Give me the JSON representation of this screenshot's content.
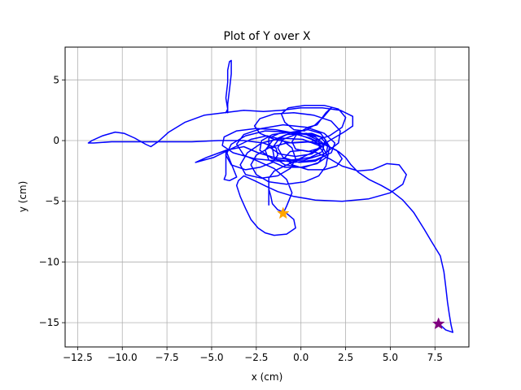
{
  "chart_data": {
    "type": "line",
    "title": "Plot of Y over X",
    "xlabel": "x (cm)",
    "ylabel": "y (cm)",
    "xlim": [
      -13.2,
      9.4
    ],
    "ylim": [
      -17.0,
      7.7
    ],
    "xticks": [
      -12.5,
      -10.0,
      -7.5,
      -5.0,
      -2.5,
      0.0,
      2.5,
      5.0,
      7.5
    ],
    "xtick_labels": [
      "−12.5",
      "−10.0",
      "−7.5",
      "−5.0",
      "−2.5",
      "0.0",
      "2.5",
      "5.0",
      "7.5"
    ],
    "yticks": [
      -15,
      -10,
      -5,
      0,
      5
    ],
    "ytick_labels": [
      "−15",
      "−10",
      "−5",
      "0",
      "5"
    ],
    "grid": true,
    "colors": {
      "line": "#0000ff",
      "start_marker": "#ffa500",
      "end_marker": "#800080",
      "grid": "#b0b0b0"
    },
    "series": [
      {
        "points": [
          [
            -1.0,
            -6.0
          ],
          [
            -0.8,
            -5.4
          ],
          [
            -0.5,
            -4.3
          ],
          [
            -0.8,
            -3.2
          ],
          [
            -1.5,
            -2.3
          ],
          [
            -2.4,
            -1.7
          ],
          [
            -3.2,
            -1.2
          ],
          [
            -3.6,
            -0.3
          ],
          [
            -3.2,
            0.5
          ],
          [
            -2.2,
            1.0
          ],
          [
            -1.0,
            1.3
          ],
          [
            0.3,
            1.1
          ],
          [
            1.3,
            0.6
          ],
          [
            1.9,
            -0.2
          ],
          [
            1.7,
            -1.0
          ],
          [
            0.8,
            -1.6
          ],
          [
            -0.4,
            -1.8
          ],
          [
            -1.6,
            -1.5
          ],
          [
            -2.3,
            -0.8
          ],
          [
            -2.2,
            0.0
          ],
          [
            -1.6,
            0.5
          ],
          [
            -0.7,
            0.7
          ],
          [
            0.3,
            0.5
          ],
          [
            1.0,
            0.0
          ],
          [
            1.1,
            -0.6
          ],
          [
            0.6,
            -1.1
          ],
          [
            -0.3,
            -1.3
          ],
          [
            -1.2,
            -1.1
          ],
          [
            -1.8,
            -0.5
          ],
          [
            -1.8,
            0.2
          ],
          [
            -1.2,
            0.6
          ],
          [
            -0.2,
            0.7
          ],
          [
            0.8,
            0.3
          ],
          [
            1.3,
            -0.3
          ],
          [
            1.2,
            -0.9
          ],
          [
            0.5,
            -1.4
          ],
          [
            -0.5,
            -1.6
          ],
          [
            -1.5,
            -1.4
          ],
          [
            -2.4,
            -1.0
          ],
          [
            -3.2,
            -0.5
          ],
          [
            -4.2,
            -0.8
          ],
          [
            -5.3,
            -1.4
          ],
          [
            -5.9,
            -1.8
          ],
          [
            -4.9,
            -1.4
          ],
          [
            -3.8,
            -0.6
          ],
          [
            -2.8,
            0.1
          ],
          [
            -1.9,
            0.4
          ],
          [
            -1.1,
            0.1
          ],
          [
            -0.5,
            -0.6
          ],
          [
            -0.3,
            -1.5
          ],
          [
            -0.6,
            -2.3
          ],
          [
            -1.3,
            -2.9
          ],
          [
            -2.2,
            -3.1
          ],
          [
            -3.1,
            -2.8
          ],
          [
            -3.4,
            -2.0
          ],
          [
            -3.0,
            -1.0
          ],
          [
            -2.2,
            -0.2
          ],
          [
            -1.1,
            0.2
          ],
          [
            0.1,
            0.1
          ],
          [
            1.0,
            -0.4
          ],
          [
            1.3,
            -1.1
          ],
          [
            1.0,
            -1.8
          ],
          [
            0.2,
            -2.2
          ],
          [
            -0.9,
            -2.2
          ],
          [
            -1.8,
            -1.6
          ],
          [
            -2.0,
            -0.8
          ],
          [
            -1.6,
            0.0
          ],
          [
            -0.8,
            0.5
          ],
          [
            0.3,
            0.6
          ],
          [
            1.1,
            0.3
          ],
          [
            1.5,
            -0.4
          ],
          [
            1.4,
            -1.2
          ],
          [
            0.8,
            -1.7
          ],
          [
            -0.1,
            -1.8
          ],
          [
            -1.0,
            -1.4
          ],
          [
            -1.3,
            -0.6
          ],
          [
            -1.0,
            0.1
          ],
          [
            -0.3,
            0.5
          ],
          [
            0.6,
            0.6
          ],
          [
            1.3,
            0.2
          ],
          [
            1.6,
            -0.5
          ],
          [
            1.5,
            -1.3
          ],
          [
            0.9,
            -1.9
          ],
          [
            0.0,
            -2.2
          ],
          [
            -0.9,
            -2.0
          ],
          [
            -1.5,
            -1.4
          ],
          [
            -1.6,
            -0.6
          ],
          [
            -1.2,
            0.2
          ],
          [
            -0.5,
            0.7
          ],
          [
            0.4,
            0.9
          ],
          [
            1.1,
            0.6
          ],
          [
            1.4,
            0.0
          ],
          [
            1.1,
            -0.6
          ],
          [
            0.4,
            -0.9
          ],
          [
            -0.3,
            -0.7
          ],
          [
            -0.5,
            -0.1
          ],
          [
            -0.2,
            0.6
          ],
          [
            0.4,
            1.1
          ],
          [
            0.9,
            1.3
          ],
          [
            1.2,
            1.9
          ],
          [
            1.4,
            2.3
          ],
          [
            1.7,
            2.7
          ],
          [
            1.3,
            2.0
          ],
          [
            0.8,
            1.3
          ],
          [
            0.2,
            0.8
          ],
          [
            -0.4,
            0.9
          ],
          [
            -0.9,
            1.5
          ],
          [
            -1.1,
            2.2
          ],
          [
            -0.7,
            2.7
          ],
          [
            0.2,
            2.9
          ],
          [
            1.3,
            2.9
          ],
          [
            2.1,
            2.6
          ],
          [
            2.5,
            1.9
          ],
          [
            2.3,
            1.1
          ],
          [
            1.6,
            0.4
          ],
          [
            0.6,
            -0.1
          ],
          [
            -0.5,
            -0.2
          ],
          [
            -1.5,
            0.1
          ],
          [
            -2.3,
            0.6
          ],
          [
            -2.6,
            1.2
          ],
          [
            -2.3,
            1.8
          ],
          [
            -1.5,
            2.2
          ],
          [
            -0.4,
            2.3
          ],
          [
            0.7,
            2.1
          ],
          [
            1.7,
            1.6
          ],
          [
            2.2,
            0.8
          ],
          [
            2.1,
            -0.2
          ],
          [
            1.3,
            -1.1
          ],
          [
            0.2,
            -1.6
          ],
          [
            -1.2,
            -1.7
          ],
          [
            -2.6,
            -1.5
          ],
          [
            -3.8,
            -1.0
          ],
          [
            -4.4,
            -0.4
          ],
          [
            -4.3,
            0.3
          ],
          [
            -3.6,
            0.8
          ],
          [
            -2.5,
            1.0
          ],
          [
            -1.4,
            0.9
          ],
          [
            -0.3,
            0.6
          ],
          [
            0.6,
            0.1
          ],
          [
            1.2,
            -0.5
          ],
          [
            1.5,
            -1.3
          ],
          [
            1.4,
            -2.1
          ],
          [
            1.0,
            -2.9
          ],
          [
            0.2,
            -3.4
          ],
          [
            -0.8,
            -3.6
          ],
          [
            -1.8,
            -3.4
          ],
          [
            -2.5,
            -2.8
          ],
          [
            -2.8,
            -2.0
          ],
          [
            -2.5,
            -1.2
          ],
          [
            -1.8,
            -0.6
          ],
          [
            -0.8,
            -0.2
          ],
          [
            0.3,
            -0.1
          ],
          [
            1.3,
            -0.3
          ],
          [
            2.0,
            -0.8
          ],
          [
            2.3,
            -1.5
          ],
          [
            2.0,
            -2.1
          ],
          [
            1.3,
            -2.4
          ],
          [
            0.4,
            -2.4
          ],
          [
            -0.5,
            -2.0
          ],
          [
            -0.9,
            -1.4
          ],
          [
            -0.6,
            -0.9
          ],
          [
            0.1,
            -0.8
          ],
          [
            0.9,
            -1.0
          ],
          [
            1.6,
            -1.5
          ],
          [
            2.3,
            -2.1
          ],
          [
            3.2,
            -2.5
          ],
          [
            4.0,
            -2.4
          ],
          [
            4.8,
            -1.9
          ],
          [
            5.5,
            -2.0
          ],
          [
            5.9,
            -2.8
          ],
          [
            5.7,
            -3.6
          ],
          [
            5.0,
            -4.3
          ],
          [
            3.8,
            -4.8
          ],
          [
            2.3,
            -5.0
          ],
          [
            0.8,
            -4.9
          ],
          [
            -0.4,
            -4.6
          ],
          [
            -1.3,
            -4.2
          ],
          [
            -1.9,
            -3.8
          ],
          [
            -2.6,
            -3.3
          ],
          [
            -3.2,
            -2.9
          ],
          [
            -3.5,
            -3.3
          ],
          [
            -3.6,
            -3.7
          ],
          [
            -3.4,
            -4.6
          ],
          [
            -3.1,
            -5.6
          ],
          [
            -2.8,
            -6.5
          ],
          [
            -2.4,
            -7.2
          ],
          [
            -2.0,
            -7.6
          ],
          [
            -1.5,
            -7.8
          ],
          [
            -0.8,
            -7.7
          ],
          [
            -0.3,
            -7.2
          ],
          [
            -0.4,
            -6.5
          ],
          [
            -0.8,
            -6.0
          ],
          [
            -1.3,
            -5.7
          ],
          [
            -1.6,
            -5.2
          ],
          [
            -1.7,
            -4.5
          ],
          [
            -1.8,
            -4.0
          ],
          [
            -1.8,
            -5.3
          ],
          [
            -1.8,
            -4.1
          ],
          [
            -1.8,
            -3.1
          ],
          [
            -1.5,
            -2.5
          ],
          [
            -0.5,
            -1.8
          ],
          [
            0.6,
            -1.0
          ],
          [
            1.6,
            0.0
          ],
          [
            2.4,
            0.7
          ],
          [
            2.9,
            1.2
          ],
          [
            2.9,
            2.0
          ],
          [
            2.2,
            2.5
          ],
          [
            1.2,
            2.7
          ],
          [
            0.0,
            2.7
          ],
          [
            -1.1,
            2.5
          ],
          [
            -2.1,
            2.4
          ],
          [
            -3.2,
            2.5
          ],
          [
            -4.3,
            2.3
          ],
          [
            -5.4,
            2.1
          ],
          [
            -6.5,
            1.5
          ],
          [
            -7.4,
            0.7
          ],
          [
            -8.0,
            -0.1
          ],
          [
            -8.4,
            -0.5
          ],
          [
            -8.7,
            -0.3
          ],
          [
            -9.3,
            0.2
          ],
          [
            -9.9,
            0.6
          ],
          [
            -10.4,
            0.7
          ],
          [
            -11.1,
            0.4
          ],
          [
            -11.7,
            0.0
          ],
          [
            -11.9,
            -0.2
          ],
          [
            -11.6,
            -0.2
          ],
          [
            -10.6,
            -0.1
          ],
          [
            -9.2,
            -0.1
          ],
          [
            -7.6,
            -0.1
          ],
          [
            -6.1,
            -0.1
          ],
          [
            -4.6,
            0.0
          ],
          [
            -3.2,
            0.0
          ],
          [
            -2.1,
            -0.2
          ],
          [
            -1.4,
            -0.6
          ],
          [
            -1.3,
            -1.2
          ],
          [
            -1.6,
            -1.8
          ],
          [
            -2.3,
            -2.2
          ],
          [
            -3.1,
            -2.4
          ],
          [
            -3.9,
            -2.0
          ],
          [
            -4.2,
            -1.2
          ],
          [
            -3.9,
            -0.3
          ],
          [
            -3.1,
            0.4
          ],
          [
            -2.0,
            0.8
          ],
          [
            -0.7,
            0.7
          ],
          [
            0.5,
            0.2
          ],
          [
            1.4,
            -0.4
          ],
          [
            2.1,
            -0.9
          ],
          [
            2.5,
            -1.4
          ],
          [
            2.8,
            -2.0
          ],
          [
            3.2,
            -2.6
          ],
          [
            3.8,
            -3.2
          ],
          [
            4.5,
            -3.7
          ],
          [
            5.1,
            -4.2
          ],
          [
            5.7,
            -4.9
          ],
          [
            6.3,
            -5.9
          ],
          [
            6.9,
            -7.3
          ],
          [
            7.3,
            -8.3
          ],
          [
            7.8,
            -9.5
          ],
          [
            8.0,
            -10.8
          ],
          [
            8.1,
            -12.0
          ],
          [
            8.2,
            -13.3
          ],
          [
            8.3,
            -14.3
          ],
          [
            8.4,
            -15.2
          ],
          [
            8.5,
            -15.8
          ],
          [
            8.1,
            -15.6
          ],
          [
            7.8,
            -15.2
          ]
        ]
      },
      {
        "points": [
          [
            -4.2,
            -0.8
          ],
          [
            -4.2,
            -2.8
          ],
          [
            -4.3,
            -3.2
          ],
          [
            -4.0,
            -3.3
          ],
          [
            -3.6,
            -3.0
          ],
          [
            -4.2,
            -0.8
          ]
        ]
      },
      {
        "points": [
          [
            -4.2,
            2.3
          ],
          [
            -4.1,
            2.6
          ],
          [
            -4.2,
            3.5
          ],
          [
            -4.1,
            4.8
          ],
          [
            -4.1,
            5.8
          ],
          [
            -4.0,
            6.5
          ],
          [
            -3.9,
            6.6
          ],
          [
            -3.9,
            5.5
          ],
          [
            -4.0,
            4.2
          ],
          [
            -4.1,
            3.0
          ],
          [
            -4.1,
            2.3
          ]
        ]
      }
    ],
    "markers": [
      {
        "x": -1.0,
        "y": -6.0,
        "shape": "star",
        "color": "#ffa500"
      },
      {
        "x": 7.7,
        "y": -15.1,
        "shape": "star",
        "color": "#800080"
      }
    ]
  }
}
